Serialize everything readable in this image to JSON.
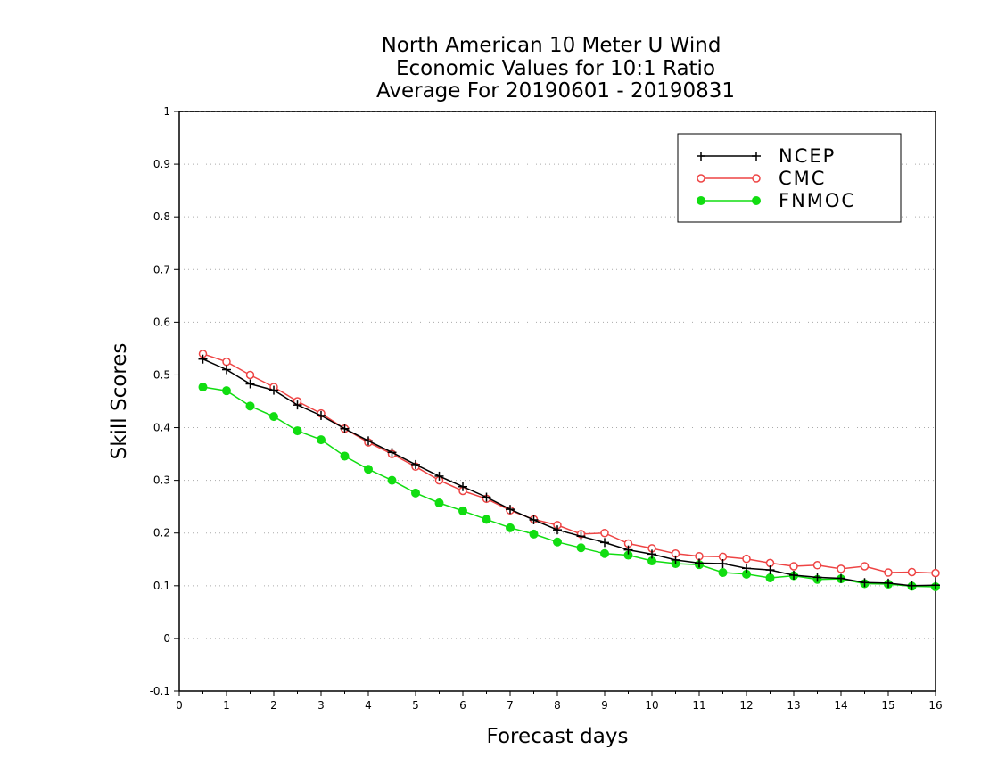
{
  "chart_data": {
    "type": "line",
    "title_lines": [
      "North American 10 Meter U Wind",
      "Economic Values for 10:1 Ratio",
      "Average For 20190601 - 20190831"
    ],
    "xlabel": "Forecast days",
    "ylabel": "Skill Scores",
    "xlim": [
      0,
      16
    ],
    "ylim": [
      -0.1,
      1
    ],
    "xticks": [
      0,
      1,
      2,
      3,
      4,
      5,
      6,
      7,
      8,
      9,
      10,
      11,
      12,
      13,
      14,
      15,
      16
    ],
    "yticks": [
      -0.1,
      0,
      0.1,
      0.2,
      0.3,
      0.4,
      0.5,
      0.6,
      0.7,
      0.8,
      0.9,
      1
    ],
    "ytick_labels": [
      "-0.1",
      "0",
      "0.1",
      "0.2",
      "0.3",
      "0.4",
      "0.5",
      "0.6",
      "0.7",
      "0.8",
      "0.9",
      "1"
    ],
    "grid": "horizontal dotted",
    "legend_position": "top-right",
    "x": [
      0.5,
      1,
      1.5,
      2,
      2.5,
      3,
      3.5,
      4,
      4.5,
      5,
      5.5,
      6,
      6.5,
      7,
      7.5,
      8,
      8.5,
      9,
      9.5,
      10,
      10.5,
      11,
      11.5,
      12,
      12.5,
      13,
      13.5,
      14,
      14.5,
      15,
      15.5,
      16
    ],
    "series": [
      {
        "name": "NCEP",
        "color": "#000000",
        "marker": "plus",
        "values": [
          0.53,
          0.51,
          0.483,
          0.471,
          0.443,
          0.423,
          0.398,
          0.375,
          0.353,
          0.33,
          0.308,
          0.288,
          0.268,
          0.245,
          0.225,
          0.206,
          0.194,
          0.182,
          0.168,
          0.16,
          0.149,
          0.143,
          0.142,
          0.133,
          0.13,
          0.12,
          0.116,
          0.114,
          0.106,
          0.105,
          0.1,
          0.101
        ]
      },
      {
        "name": "CMC",
        "color": "#ee4444",
        "marker": "open-circle",
        "values": [
          0.54,
          0.525,
          0.5,
          0.477,
          0.45,
          0.427,
          0.398,
          0.372,
          0.35,
          0.326,
          0.3,
          0.28,
          0.265,
          0.243,
          0.226,
          0.215,
          0.198,
          0.2,
          0.18,
          0.171,
          0.161,
          0.156,
          0.155,
          0.151,
          0.143,
          0.137,
          0.139,
          0.132,
          0.137,
          0.125,
          0.126,
          0.124
        ]
      },
      {
        "name": "FNMOC",
        "color": "#11dd11",
        "marker": "filled-circle",
        "values": [
          0.477,
          0.47,
          0.441,
          0.421,
          0.394,
          0.377,
          0.346,
          0.321,
          0.3,
          0.276,
          0.257,
          0.242,
          0.226,
          0.21,
          0.198,
          0.183,
          0.172,
          0.161,
          0.158,
          0.147,
          0.142,
          0.14,
          0.125,
          0.122,
          0.115,
          0.119,
          0.112,
          0.113,
          0.104,
          0.103,
          0.099,
          0.098
        ]
      }
    ]
  }
}
